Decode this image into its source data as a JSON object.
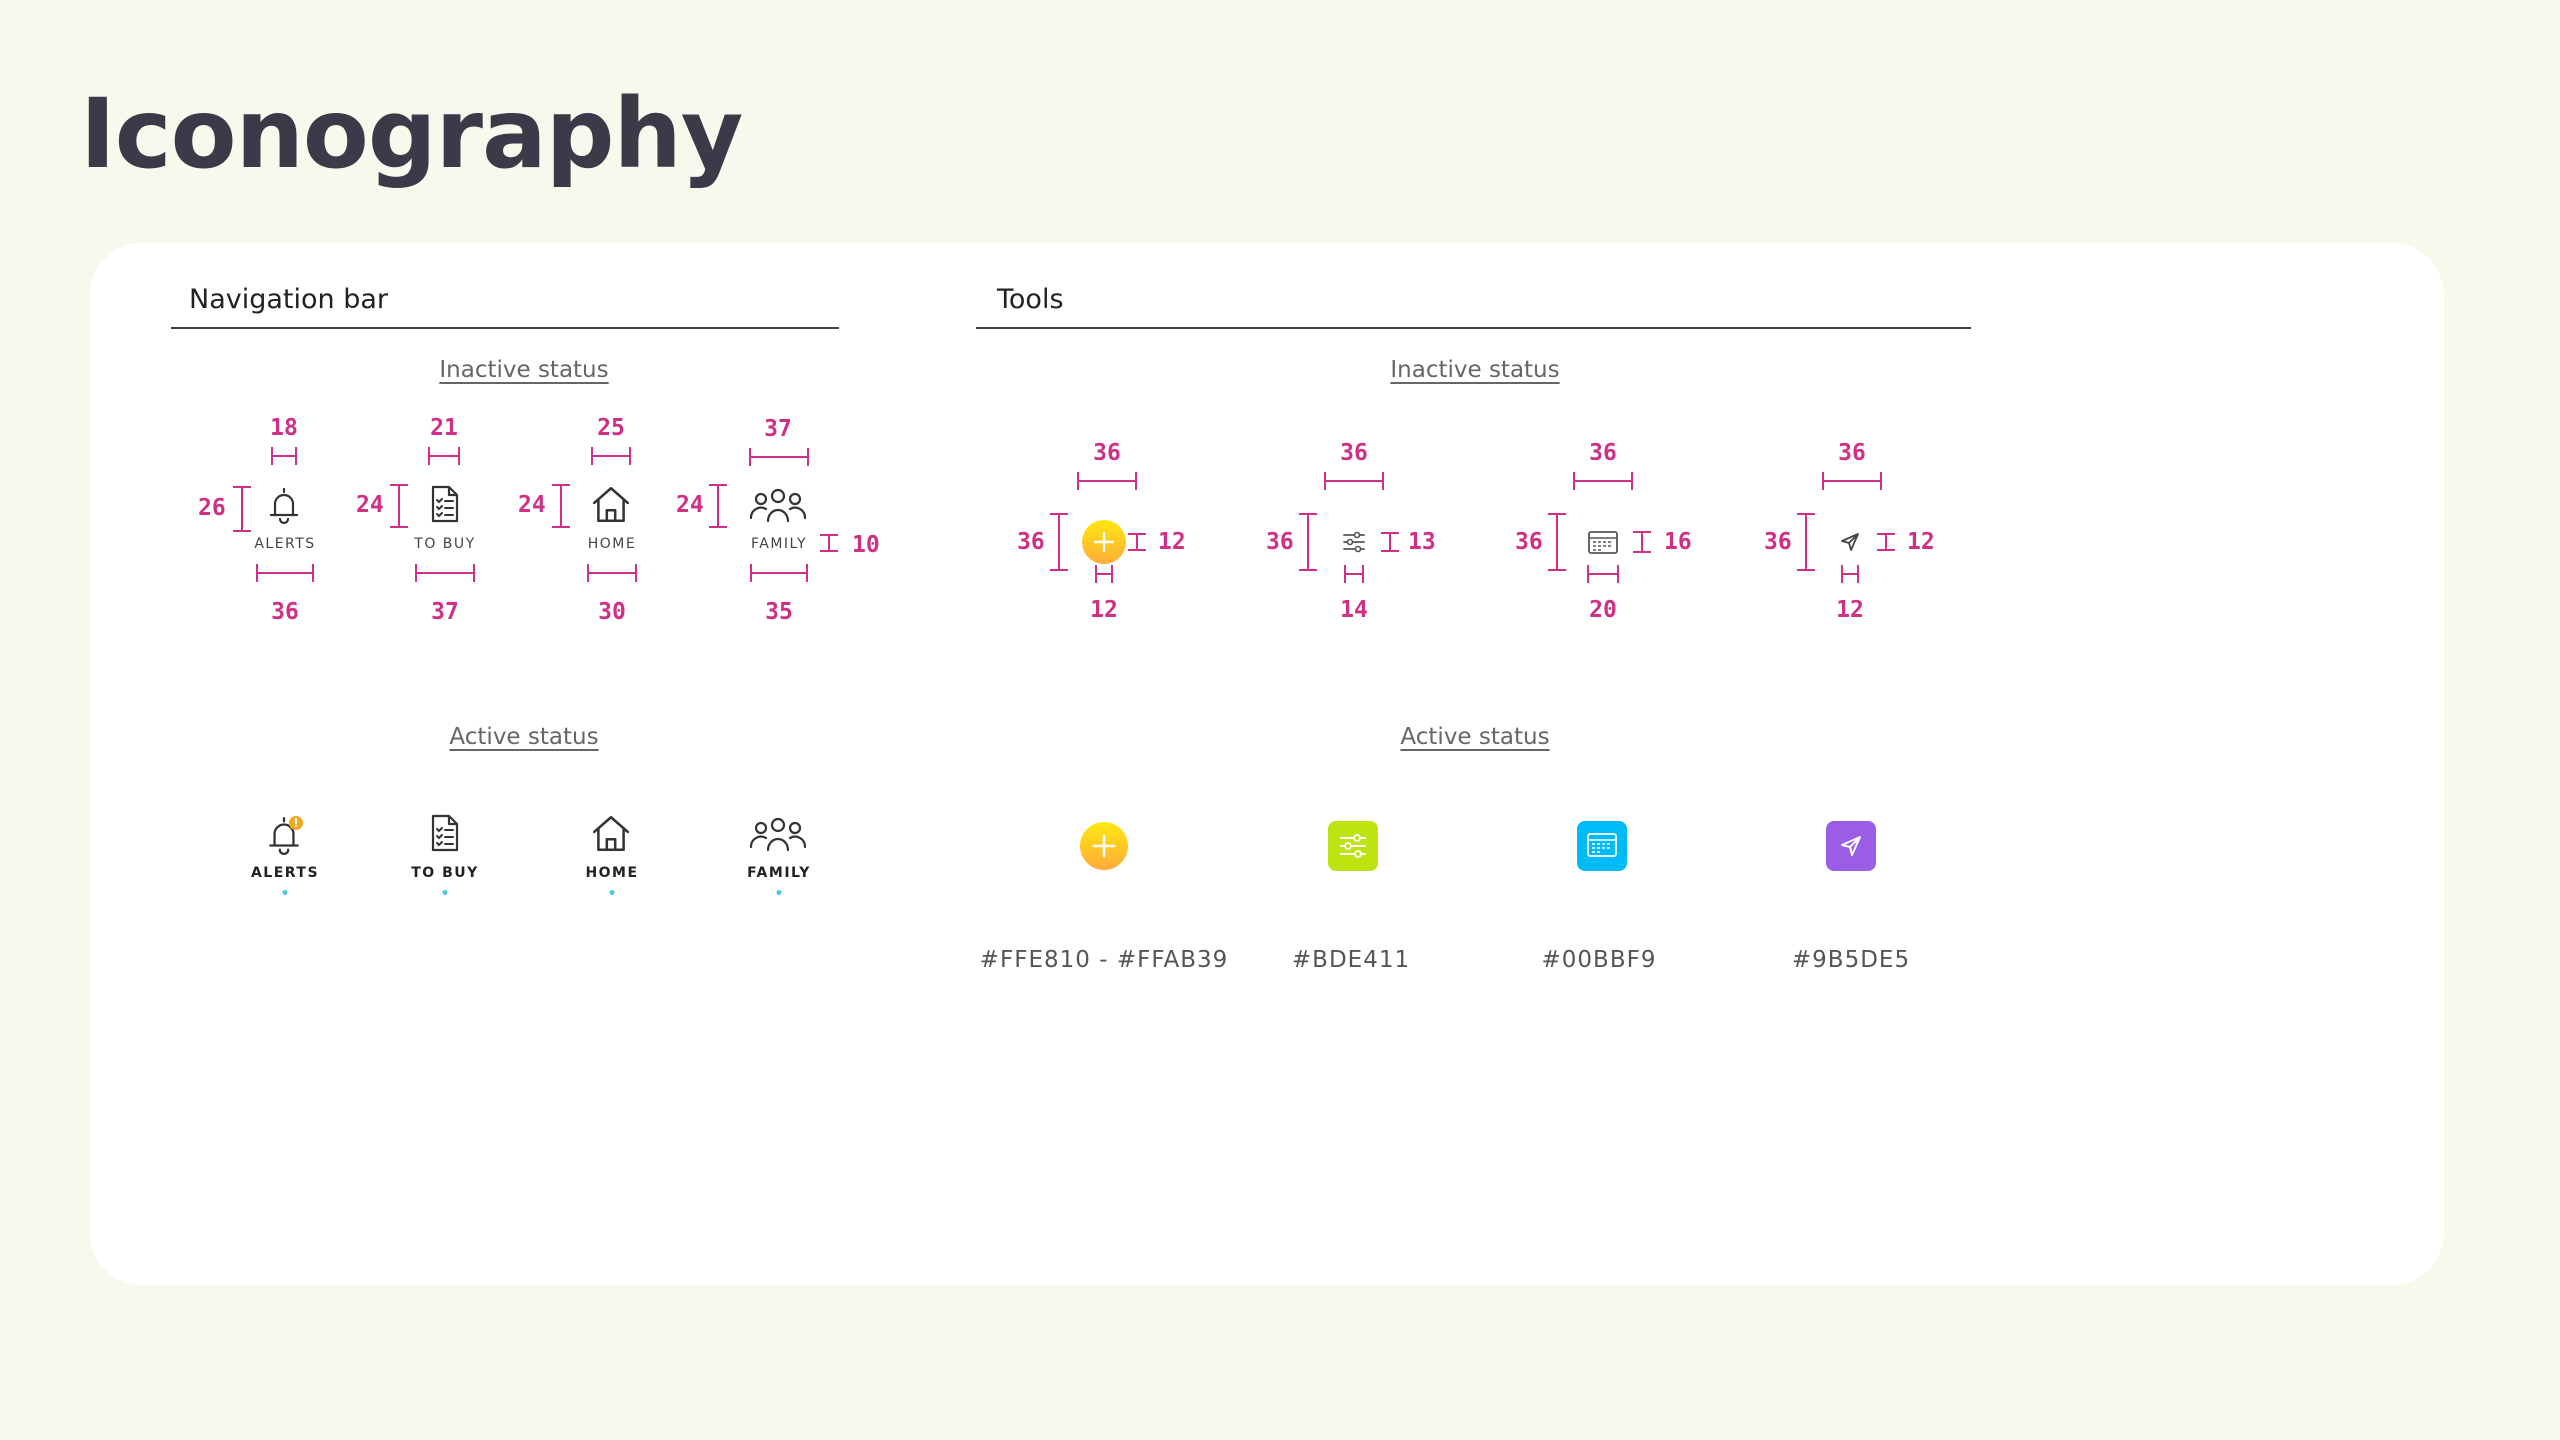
{
  "page": {
    "title": "Iconography"
  },
  "nav": {
    "title": "Navigation bar",
    "inactive_title": "Inactive status",
    "active_title": "Active status",
    "icons": [
      {
        "name": "alerts",
        "label": "ALERTS",
        "icon": "bell-icon",
        "top_w": "18",
        "left_h": "26",
        "bottom_w": "36"
      },
      {
        "name": "to-buy",
        "label": "TO BUY",
        "icon": "checklist-icon",
        "top_w": "21",
        "left_h": "24",
        "bottom_w": "37"
      },
      {
        "name": "home",
        "label": "HOME",
        "icon": "home-icon",
        "top_w": "25",
        "left_h": "24",
        "bottom_w": "30"
      },
      {
        "name": "family",
        "label": "FAMILY",
        "icon": "family-icon",
        "top_w": "37",
        "left_h": "24",
        "bottom_w": "35",
        "label_h": "10"
      }
    ],
    "alert_badge_color": "#f5a623",
    "active_dot_color": "#4fc3e8"
  },
  "tools": {
    "title": "Tools",
    "inactive_title": "Inactive status",
    "active_title": "Active status",
    "items": [
      {
        "name": "add",
        "icon": "plus-icon",
        "top_w": "36",
        "left_h": "36",
        "right_h": "12",
        "bottom_w": "12",
        "color_label": "#FFE810 - #FFAB39",
        "color_from": "#FFE810",
        "color_to": "#FFAB39"
      },
      {
        "name": "filters",
        "icon": "sliders-icon",
        "top_w": "36",
        "left_h": "36",
        "right_h": "13",
        "bottom_w": "14",
        "color_label": "#BDE411",
        "color_from": "#BDE411",
        "color_to": "#BDE411"
      },
      {
        "name": "calendar",
        "icon": "calendar-icon",
        "top_w": "36",
        "left_h": "36",
        "right_h": "16",
        "bottom_w": "20",
        "color_label": "#00BBF9",
        "color_from": "#00BBF9",
        "color_to": "#00BBF9"
      },
      {
        "name": "send",
        "icon": "send-icon",
        "top_w": "36",
        "left_h": "36",
        "right_h": "12",
        "bottom_w": "12",
        "color_label": "#9B5DE5",
        "color_from": "#9B5DE5",
        "color_to": "#9B5DE5"
      }
    ]
  }
}
